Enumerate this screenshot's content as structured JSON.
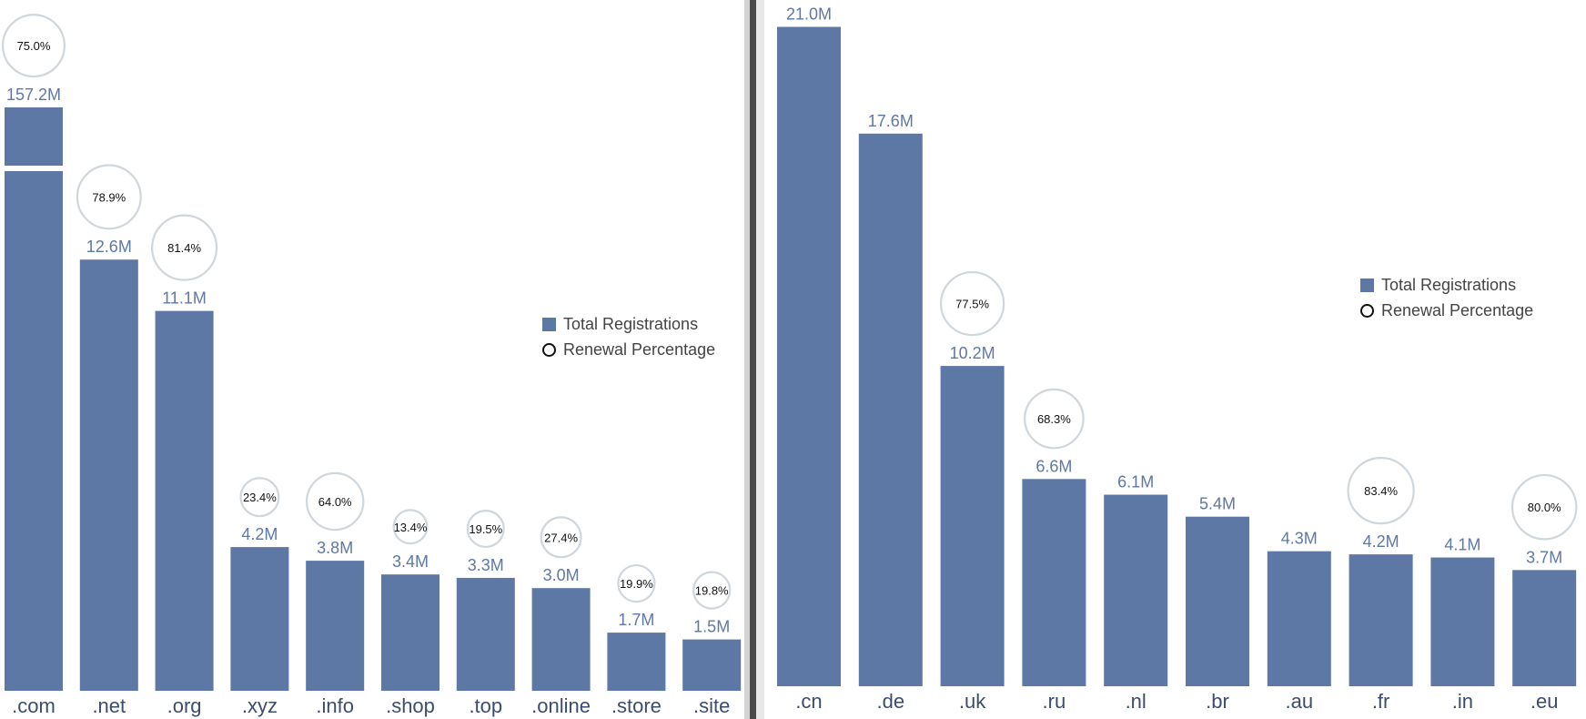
{
  "chart_data": [
    {
      "type": "bar",
      "title": "",
      "xlabel": "",
      "ylabel": "",
      "categories": [
        ".com",
        ".net",
        ".org",
        ".xyz",
        ".info",
        ".shop",
        ".top",
        ".online",
        ".store",
        ".site"
      ],
      "series": [
        {
          "name": "Total Registrations",
          "unit": "M",
          "values": [
            157.2,
            12.6,
            11.1,
            4.2,
            3.8,
            3.4,
            3.3,
            3.0,
            1.7,
            1.5
          ],
          "value_labels": [
            "157.2M",
            "12.6M",
            "11.1M",
            "4.2M",
            "3.8M",
            "3.4M",
            "3.3M",
            "3.0M",
            "1.7M",
            "1.5M"
          ]
        },
        {
          "name": "Renewal Percentage",
          "unit": "%",
          "values": [
            75.0,
            78.9,
            81.4,
            23.4,
            64.0,
            13.4,
            19.5,
            27.4,
            19.9,
            19.8
          ],
          "value_labels": [
            "75.0%",
            "78.9%",
            "81.4%",
            "23.4%",
            "64.0%",
            "13.4%",
            "19.5%",
            "27.4%",
            "19.9%",
            "19.8%"
          ]
        }
      ],
      "axis_break": true,
      "grid": false,
      "legend": {
        "position": "right",
        "items": [
          "Total Registrations",
          "Renewal Percentage"
        ]
      }
    },
    {
      "type": "bar",
      "title": "",
      "xlabel": "",
      "ylabel": "",
      "categories": [
        ".cn",
        ".de",
        ".uk",
        ".ru",
        ".nl",
        ".br",
        ".au",
        ".fr",
        ".in",
        ".eu"
      ],
      "series": [
        {
          "name": "Total Registrations",
          "unit": "M",
          "values": [
            21.0,
            17.6,
            10.2,
            6.6,
            6.1,
            5.4,
            4.3,
            4.2,
            4.1,
            3.7
          ],
          "value_labels": [
            "21.0M",
            "17.6M",
            "10.2M",
            "6.6M",
            "6.1M",
            "5.4M",
            "4.3M",
            "4.2M",
            "4.1M",
            "3.7M"
          ]
        },
        {
          "name": "Renewal Percentage",
          "unit": "%",
          "values": [
            null,
            null,
            77.5,
            68.3,
            null,
            null,
            null,
            83.4,
            null,
            80.0
          ],
          "value_labels": [
            "",
            "",
            "77.5%",
            "68.3%",
            "",
            "",
            "",
            "83.4%",
            "",
            "80.0%"
          ]
        }
      ],
      "grid": false,
      "legend": {
        "position": "right",
        "items": [
          "Total Registrations",
          "Renewal Percentage"
        ]
      }
    }
  ]
}
